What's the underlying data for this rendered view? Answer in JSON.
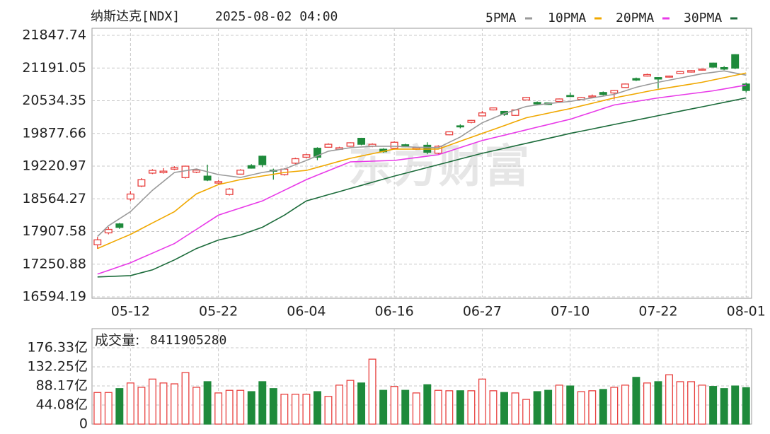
{
  "chart_data": {
    "type": "candlestick",
    "name": "纳斯达克[NDX]",
    "datetime": "2025-08-02 04:00",
    "watermark": "东方财富",
    "up_color": "#e8413f",
    "down_color": "#1e8a3b",
    "grid": true,
    "categories": [
      null,
      null,
      null,
      "05-12",
      null,
      null,
      null,
      null,
      null,
      null,
      null,
      "05-22",
      null,
      null,
      null,
      null,
      null,
      null,
      null,
      "06-04",
      null,
      null,
      null,
      null,
      null,
      null,
      null,
      "06-16",
      null,
      null,
      null,
      null,
      null,
      null,
      null,
      "06-27",
      null,
      null,
      null,
      null,
      null,
      null,
      null,
      "07-10",
      null,
      null,
      null,
      null,
      null,
      null,
      null,
      "07-22",
      null,
      null,
      null,
      null,
      null,
      null,
      null,
      "08-01"
    ],
    "open": [
      17640,
      17880,
      18060,
      18560,
      18820,
      19080,
      19090,
      19160,
      18990,
      19100,
      19020,
      18880,
      18650,
      19060,
      19230,
      19420,
      19140,
      19050,
      19280,
      19400,
      19580,
      19600,
      19560,
      19620,
      19780,
      19620,
      19560,
      19580,
      19650,
      19560,
      19640,
      19480,
      19850,
      20030,
      20100,
      20230,
      20350,
      20320,
      20240,
      20550,
      20500,
      20490,
      20520,
      20640,
      20560,
      20610,
      20700,
      20690,
      20800,
      20980,
      21030,
      21000,
      21010,
      21080,
      21110,
      21150,
      21290,
      21200,
      21460,
      20870
    ],
    "high": [
      17800,
      18000,
      18080,
      18720,
      18980,
      19160,
      19180,
      19220,
      19230,
      19160,
      19250,
      18940,
      18780,
      19160,
      19260,
      19430,
      19170,
      19180,
      19390,
      19470,
      19600,
      19680,
      19610,
      19700,
      19790,
      19680,
      19580,
      19720,
      19670,
      19600,
      19700,
      19640,
      19920,
      20060,
      20150,
      20330,
      20400,
      20330,
      20360,
      20610,
      20520,
      20500,
      20580,
      20700,
      20610,
      20660,
      20720,
      20750,
      20880,
      21000,
      21080,
      21010,
      21040,
      21130,
      21150,
      21180,
      21300,
      21230,
      21470,
      20900
    ],
    "low": [
      17560,
      17850,
      17960,
      18520,
      18800,
      19060,
      19070,
      19140,
      18970,
      19080,
      18920,
      18860,
      18630,
      19050,
      19170,
      19200,
      18950,
      19030,
      19260,
      19380,
      19340,
      19590,
      19550,
      19610,
      19640,
      19600,
      19490,
      19570,
      19600,
      19550,
      19460,
      19460,
      19840,
      19980,
      20080,
      20220,
      20340,
      20230,
      20230,
      20540,
      20450,
      20450,
      20510,
      20610,
      20550,
      20600,
      20640,
      20560,
      20790,
      20930,
      21020,
      20780,
      21000,
      21070,
      21100,
      21140,
      21200,
      21150,
      21170,
      20700
    ],
    "close": [
      17740,
      17950,
      17990,
      18660,
      18950,
      19135,
      19120,
      19190,
      19220,
      19140,
      18940,
      18910,
      18760,
      19140,
      19180,
      19250,
      19120,
      19160,
      19370,
      19450,
      19400,
      19660,
      19590,
      19690,
      19660,
      19660,
      19510,
      19700,
      19610,
      19590,
      19500,
      19620,
      19910,
      20010,
      20140,
      20290,
      20390,
      20260,
      20350,
      20600,
      20470,
      20460,
      20570,
      20620,
      20600,
      20630,
      20660,
      20740,
      20870,
      20950,
      21060,
      20970,
      21030,
      21120,
      21140,
      21170,
      21210,
      21170,
      21190,
      20740
    ],
    "ylim": [
      16594.19,
      21990
    ],
    "yticks": [
      16594.19,
      17250.88,
      17907.58,
      18564.27,
      19220.97,
      19877.66,
      20534.35,
      21191.05,
      21847.74
    ],
    "ma_series": [
      {
        "name": "5PMA",
        "color": "#9a9a9a",
        "values": [
          17808,
          18022,
          18164,
          18307,
          18521,
          18735,
          18914,
          19093,
          19128,
          19163,
          19107,
          19050,
          19022,
          18993,
          19043,
          19093,
          19128,
          19163,
          19249,
          19335,
          19428,
          19520,
          19556,
          19592,
          19606,
          19620,
          19620,
          19620,
          19610,
          19600,
          19596,
          19592,
          19700,
          19806,
          19949,
          20092,
          20185,
          20278,
          20349,
          20420,
          20449,
          20477,
          20499,
          20520,
          20556,
          20591,
          20627,
          20663,
          20734,
          20805,
          20855,
          20905,
          20948,
          20991,
          21034,
          21077,
          21105,
          21134,
          21091,
          21048
        ]
      },
      {
        "name": "10PMA",
        "color": "#f0a800",
        "values": [
          17565,
          17660,
          17755,
          17850,
          17964,
          18079,
          18193,
          18307,
          18486,
          18664,
          18757,
          18850,
          18900,
          18950,
          18986,
          19022,
          19057,
          19093,
          19114,
          19135,
          19196,
          19257,
          19317,
          19378,
          19424,
          19470,
          19517,
          19563,
          19563,
          19563,
          19563,
          19563,
          19642,
          19721,
          19799,
          19878,
          19957,
          20035,
          20114,
          20192,
          20238,
          20285,
          20331,
          20377,
          20431,
          20484,
          20538,
          20591,
          20634,
          20677,
          20720,
          20763,
          20798,
          20834,
          20870,
          20905,
          20952,
          20998,
          21045,
          21091
        ]
      },
      {
        "name": "20PMA",
        "color": "#e83ae8",
        "values": [
          17051,
          17127,
          17204,
          17280,
          17376,
          17472,
          17569,
          17665,
          17808,
          17950,
          18093,
          18236,
          18308,
          18379,
          18451,
          18522,
          18629,
          18736,
          18843,
          18950,
          19039,
          19129,
          19218,
          19307,
          19314,
          19321,
          19328,
          19335,
          19364,
          19393,
          19421,
          19450,
          19521,
          19593,
          19664,
          19735,
          19789,
          19842,
          19896,
          19949,
          20003,
          20056,
          20110,
          20163,
          20235,
          20306,
          20378,
          20449,
          20485,
          20520,
          20556,
          20591,
          20620,
          20648,
          20677,
          20705,
          20734,
          20772,
          20810,
          20848
        ]
      },
      {
        "name": "30PMA",
        "color": "#1b6b3a",
        "values": [
          16994,
          17003,
          17012,
          17022,
          17080,
          17137,
          17237,
          17337,
          17451,
          17565,
          17650,
          17736,
          17786,
          17836,
          17915,
          17993,
          18115,
          18236,
          18380,
          18522,
          18584,
          18647,
          18709,
          18772,
          18834,
          18896,
          18959,
          19021,
          19078,
          19135,
          19193,
          19250,
          19307,
          19364,
          19421,
          19478,
          19528,
          19578,
          19628,
          19678,
          19728,
          19778,
          19828,
          19878,
          19923,
          19967,
          20012,
          20057,
          20101,
          20146,
          20190,
          20235,
          20279,
          20324,
          20368,
          20413,
          20457,
          20502,
          20546,
          20591
        ]
      }
    ],
    "volume": {
      "label": "成交量:",
      "latest": 8411905280,
      "values": [
        73,
        73,
        82,
        95,
        85,
        104,
        95,
        93,
        119,
        85,
        98,
        72,
        78,
        78,
        75,
        98,
        82,
        69,
        69,
        69,
        75,
        64,
        90,
        101,
        95,
        150,
        78,
        87,
        78,
        72,
        91,
        78,
        77,
        77,
        77,
        104,
        77,
        73,
        72,
        57,
        75,
        78,
        90,
        88,
        75,
        77,
        80,
        85,
        90,
        108,
        95,
        98,
        114,
        98,
        98,
        90,
        87,
        82,
        88,
        84.1190528
      ],
      "ylim": [
        0,
        220.41
      ],
      "yticks": [
        0,
        {
          "value": 44.08,
          "label": "44.08亿"
        },
        {
          "value": 88.17,
          "label": "88.17亿"
        },
        {
          "value": 132.25,
          "label": "132.25亿"
        },
        {
          "value": 176.33,
          "label": "176.33亿"
        }
      ]
    }
  }
}
